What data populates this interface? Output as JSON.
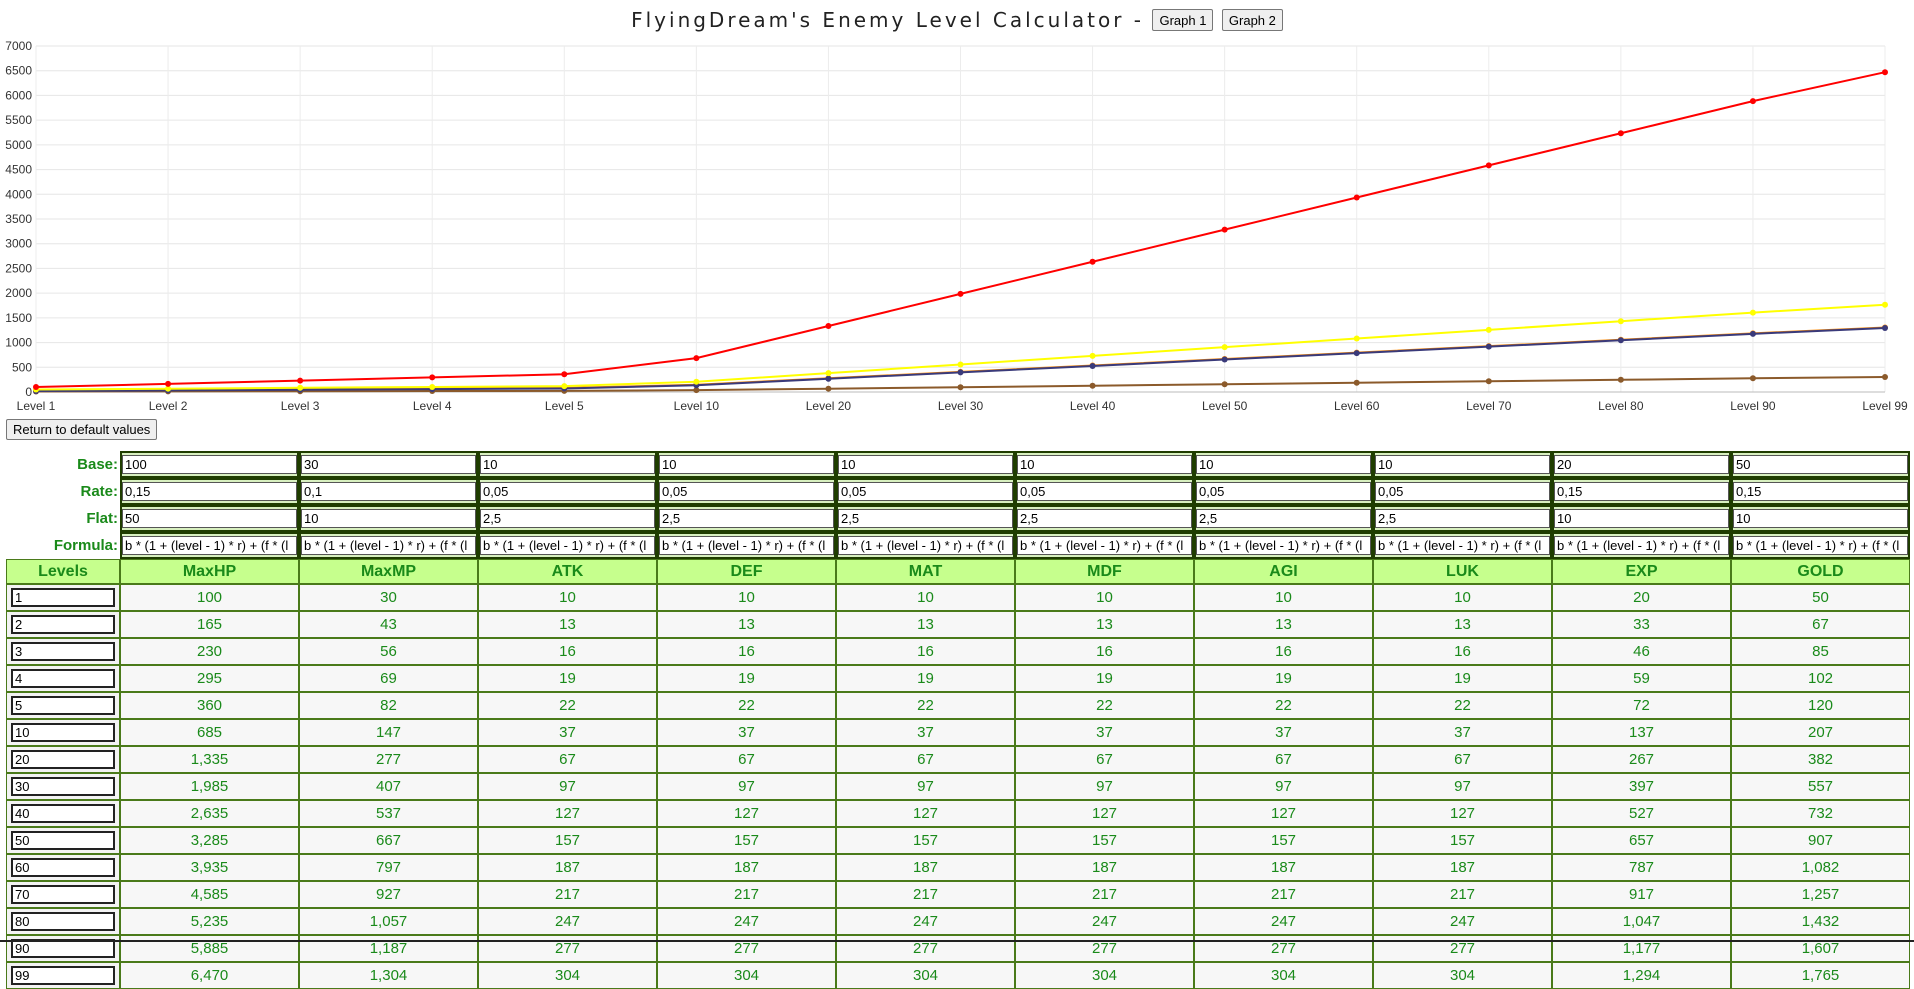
{
  "title": "FlyingDream's Enemy Level Calculator -",
  "buttons": {
    "graph1": "Graph 1",
    "graph2": "Graph 2",
    "reset": "Return to default values"
  },
  "row_labels": {
    "base": "Base:",
    "rate": "Rate:",
    "flat": "Flat:",
    "formula": "Formula:",
    "levels": "Levels"
  },
  "stats": [
    "MaxHP",
    "MaxMP",
    "ATK",
    "DEF",
    "MAT",
    "MDF",
    "AGI",
    "LUK",
    "EXP",
    "GOLD"
  ],
  "base": [
    "100",
    "30",
    "10",
    "10",
    "10",
    "10",
    "10",
    "10",
    "20",
    "50"
  ],
  "rate": [
    "0,15",
    "0,1",
    "0,05",
    "0,05",
    "0,05",
    "0,05",
    "0,05",
    "0,05",
    "0,15",
    "0,15"
  ],
  "flat": [
    "50",
    "10",
    "2,5",
    "2,5",
    "2,5",
    "2,5",
    "2,5",
    "2,5",
    "10",
    "10"
  ],
  "formula": "b * (1 + (level - 1) * r) + (f * (l",
  "levels": [
    "1",
    "2",
    "3",
    "4",
    "5",
    "10",
    "20",
    "30",
    "40",
    "50",
    "60",
    "70",
    "80",
    "90",
    "99"
  ],
  "rows": [
    [
      "100",
      "30",
      "10",
      "10",
      "10",
      "10",
      "10",
      "10",
      "20",
      "50"
    ],
    [
      "165",
      "43",
      "13",
      "13",
      "13",
      "13",
      "13",
      "13",
      "33",
      "67"
    ],
    [
      "230",
      "56",
      "16",
      "16",
      "16",
      "16",
      "16",
      "16",
      "46",
      "85"
    ],
    [
      "295",
      "69",
      "19",
      "19",
      "19",
      "19",
      "19",
      "19",
      "59",
      "102"
    ],
    [
      "360",
      "82",
      "22",
      "22",
      "22",
      "22",
      "22",
      "22",
      "72",
      "120"
    ],
    [
      "685",
      "147",
      "37",
      "37",
      "37",
      "37",
      "37",
      "37",
      "137",
      "207"
    ],
    [
      "1,335",
      "277",
      "67",
      "67",
      "67",
      "67",
      "67",
      "67",
      "267",
      "382"
    ],
    [
      "1,985",
      "407",
      "97",
      "97",
      "97",
      "97",
      "97",
      "97",
      "397",
      "557"
    ],
    [
      "2,635",
      "537",
      "127",
      "127",
      "127",
      "127",
      "127",
      "127",
      "527",
      "732"
    ],
    [
      "3,285",
      "667",
      "157",
      "157",
      "157",
      "157",
      "157",
      "157",
      "657",
      "907"
    ],
    [
      "3,935",
      "797",
      "187",
      "187",
      "187",
      "187",
      "187",
      "187",
      "787",
      "1,082"
    ],
    [
      "4,585",
      "927",
      "217",
      "217",
      "217",
      "217",
      "217",
      "217",
      "917",
      "1,257"
    ],
    [
      "5,235",
      "1,057",
      "247",
      "247",
      "247",
      "247",
      "247",
      "247",
      "1,047",
      "1,432"
    ],
    [
      "5,885",
      "1,187",
      "277",
      "277",
      "277",
      "277",
      "277",
      "277",
      "1,177",
      "1,607"
    ],
    [
      "6,470",
      "1,304",
      "304",
      "304",
      "304",
      "304",
      "304",
      "304",
      "1,294",
      "1,765"
    ]
  ],
  "chart_data": {
    "type": "line",
    "categories": [
      "Level 1",
      "Level 2",
      "Level 3",
      "Level 4",
      "Level 5",
      "Level 10",
      "Level 20",
      "Level 30",
      "Level 40",
      "Level 50",
      "Level 60",
      "Level 70",
      "Level 80",
      "Level 90",
      "Level 99"
    ],
    "ylim": [
      0,
      7000
    ],
    "yticks": [
      0,
      500,
      1000,
      1500,
      2000,
      2500,
      3000,
      3500,
      4000,
      4500,
      5000,
      5500,
      6000,
      6500,
      7000
    ],
    "grid": true,
    "series": [
      {
        "color": "#ff0000",
        "values": [
          100,
          165,
          230,
          295,
          360,
          685,
          1335,
          1985,
          2635,
          3285,
          3935,
          4585,
          5235,
          5885,
          6470
        ]
      },
      {
        "color": "#ffff00",
        "values": [
          50,
          67,
          85,
          102,
          120,
          207,
          382,
          557,
          732,
          907,
          1082,
          1257,
          1432,
          1607,
          1765
        ]
      },
      {
        "color": "#3a3a7a",
        "values": [
          20,
          33,
          46,
          59,
          72,
          137,
          267,
          397,
          527,
          657,
          787,
          917,
          1047,
          1177,
          1294
        ]
      },
      {
        "color": "#ff8c00",
        "values": [
          30,
          43,
          56,
          69,
          82,
          147,
          277,
          407,
          537,
          667,
          797,
          927,
          1057,
          1187,
          1304
        ]
      },
      {
        "color": "#8b5a2b",
        "values": [
          10,
          13,
          16,
          19,
          22,
          37,
          67,
          97,
          127,
          157,
          187,
          217,
          247,
          277,
          304
        ]
      }
    ]
  }
}
